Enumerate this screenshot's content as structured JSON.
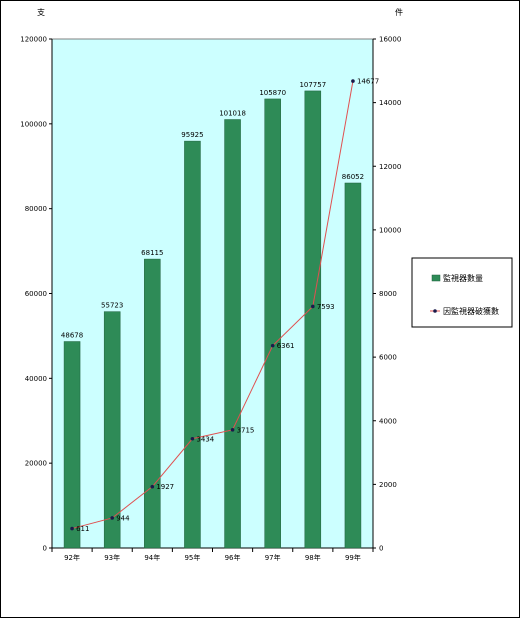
{
  "chart_data": {
    "type": "bar",
    "categories": [
      "92年",
      "93年",
      "94年",
      "95年",
      "96年",
      "97年",
      "98年",
      "99年"
    ],
    "series": [
      {
        "name": "監視器數量",
        "type": "bar",
        "axis": "left",
        "color": "#2e8b57",
        "values": [
          48678,
          55723,
          68115,
          95925,
          101018,
          105870,
          107757,
          86052
        ]
      },
      {
        "name": "因監視器破獲數",
        "type": "line",
        "axis": "right",
        "color": "#e05050",
        "marker_color": "#1a1a4a",
        "values": [
          611,
          944,
          1927,
          3434,
          3715,
          6361,
          7593,
          14677
        ]
      }
    ],
    "left_axis": {
      "unit": "支",
      "ylim": [
        0,
        120000
      ],
      "ticks": [
        0,
        20000,
        40000,
        60000,
        80000,
        100000,
        120000
      ]
    },
    "right_axis": {
      "unit": "件",
      "ylim": [
        0,
        16000
      ],
      "ticks": [
        0,
        2000,
        4000,
        6000,
        8000,
        10000,
        12000,
        14000,
        16000
      ]
    },
    "plot_background": "#ccffff",
    "grid": false,
    "legend_position": "right"
  }
}
